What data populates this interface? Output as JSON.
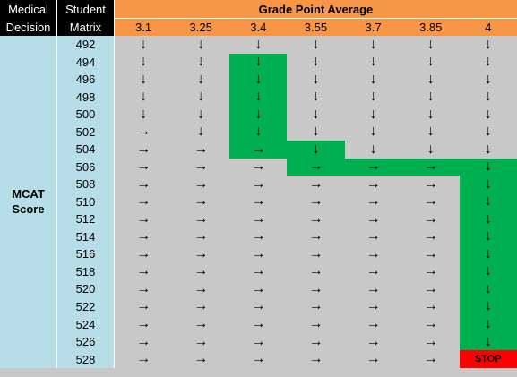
{
  "header": {
    "col1": [
      "Medical",
      "Decision"
    ],
    "col2": [
      "Student",
      "Matrix"
    ],
    "gpa_title": "Grade Point Average",
    "gpa_values": [
      "3.1",
      "3.25",
      "3.4",
      "3.55",
      "3.7",
      "3.85",
      "4"
    ]
  },
  "sidebar": {
    "label": [
      "MCAT",
      "Score"
    ]
  },
  "mcat_scores": [
    "492",
    "494",
    "496",
    "498",
    "500",
    "502",
    "504",
    "506",
    "508",
    "510",
    "512",
    "514",
    "516",
    "518",
    "520",
    "522",
    "524",
    "526",
    "528"
  ],
  "symbols": {
    "D": "↓",
    "R": "→",
    "S": "STOP"
  },
  "matrix": [
    [
      "D",
      "D",
      "D",
      "D",
      "D",
      "D",
      "D"
    ],
    [
      "D",
      "D",
      "D",
      "D",
      "D",
      "D",
      "D"
    ],
    [
      "D",
      "D",
      "D",
      "D",
      "D",
      "D",
      "D"
    ],
    [
      "D",
      "D",
      "D",
      "D",
      "D",
      "D",
      "D"
    ],
    [
      "D",
      "D",
      "D",
      "D",
      "D",
      "D",
      "D"
    ],
    [
      "R",
      "D",
      "D",
      "D",
      "D",
      "D",
      "D"
    ],
    [
      "R",
      "R",
      "R",
      "D",
      "D",
      "D",
      "D"
    ],
    [
      "R",
      "R",
      "R",
      "R",
      "R",
      "R",
      "D"
    ],
    [
      "R",
      "R",
      "R",
      "R",
      "R",
      "R",
      "D"
    ],
    [
      "R",
      "R",
      "R",
      "R",
      "R",
      "R",
      "D"
    ],
    [
      "R",
      "R",
      "R",
      "R",
      "R",
      "R",
      "D"
    ],
    [
      "R",
      "R",
      "R",
      "R",
      "R",
      "R",
      "D"
    ],
    [
      "R",
      "R",
      "R",
      "R",
      "R",
      "R",
      "D"
    ],
    [
      "R",
      "R",
      "R",
      "R",
      "R",
      "R",
      "D"
    ],
    [
      "R",
      "R",
      "R",
      "R",
      "R",
      "R",
      "D"
    ],
    [
      "R",
      "R",
      "R",
      "R",
      "R",
      "R",
      "D"
    ],
    [
      "R",
      "R",
      "R",
      "R",
      "R",
      "R",
      "D"
    ],
    [
      "R",
      "R",
      "R",
      "R",
      "R",
      "R",
      "D"
    ],
    [
      "R",
      "R",
      "R",
      "R",
      "R",
      "R",
      "S"
    ]
  ],
  "highlight_path": [
    [
      1,
      2
    ],
    [
      2,
      2
    ],
    [
      3,
      2
    ],
    [
      4,
      2
    ],
    [
      5,
      2
    ],
    [
      6,
      2
    ],
    [
      6,
      3
    ],
    [
      7,
      3
    ],
    [
      7,
      4
    ],
    [
      7,
      5
    ],
    [
      7,
      6
    ],
    [
      8,
      6
    ],
    [
      9,
      6
    ],
    [
      10,
      6
    ],
    [
      11,
      6
    ],
    [
      12,
      6
    ],
    [
      13,
      6
    ],
    [
      14,
      6
    ],
    [
      15,
      6
    ],
    [
      16,
      6
    ],
    [
      17,
      6
    ]
  ],
  "stop_cell": [
    18,
    6
  ],
  "colors": {
    "header_bg": "#000000",
    "gpa_bar": "#f79646",
    "sidebar": "#b7dee8",
    "cell": "#c8c8c8",
    "path": "#00b050",
    "stop": "#ff0000"
  }
}
